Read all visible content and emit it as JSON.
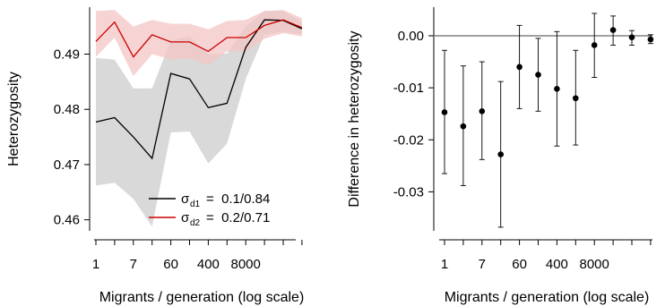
{
  "chart_data": [
    {
      "type": "line",
      "xlabel": "Migrants / generation (log scale)",
      "ylabel": "Heterozygosity",
      "x_ticks": [
        "1",
        "7",
        "60",
        "400",
        "8000"
      ],
      "y_ticks": [
        "0.46",
        "0.47",
        "0.48",
        "0.49"
      ],
      "ylim": [
        0.458,
        0.4985
      ],
      "x": [
        1,
        2,
        3,
        4,
        5,
        6,
        7,
        8,
        9,
        10,
        11,
        12
      ],
      "series": [
        {
          "name": "σd1 = 0.1/0.84",
          "legend_symbol": "σ",
          "legend_sub": "d1",
          "legend_value": "=  0.1/0.84",
          "color": "#000000",
          "band_color": "#d9d9d9",
          "values": [
            0.4777,
            0.4785,
            0.475,
            0.4711,
            0.4865,
            0.4855,
            0.4803,
            0.4811,
            0.4912,
            0.4962,
            0.4961,
            0.4946
          ],
          "lower": [
            0.4662,
            0.4667,
            0.4638,
            0.4588,
            0.4758,
            0.476,
            0.4702,
            0.4738,
            0.4855,
            0.4935,
            0.4941,
            0.4936
          ],
          "upper": [
            0.4893,
            0.489,
            0.4838,
            0.4838,
            0.4925,
            0.4932,
            0.49,
            0.4901,
            0.495,
            0.4978,
            0.4978,
            0.4958
          ]
        },
        {
          "name": "σd2 = 0.2/0.71",
          "legend_symbol": "σ",
          "legend_sub": "d2",
          "legend_value": "=  0.2/0.71",
          "color": "#cc0000",
          "band_color": "#f4c6c6",
          "values": [
            0.4923,
            0.4958,
            0.4895,
            0.4935,
            0.4922,
            0.4922,
            0.4905,
            0.493,
            0.493,
            0.4952,
            0.4962,
            0.4948
          ],
          "lower": [
            0.4895,
            0.493,
            0.486,
            0.49,
            0.489,
            0.4892,
            0.488,
            0.4905,
            0.4905,
            0.4928,
            0.4938,
            0.4932
          ],
          "upper": [
            0.4978,
            0.498,
            0.495,
            0.4962,
            0.4955,
            0.4955,
            0.4945,
            0.496,
            0.4962,
            0.4978,
            0.498,
            0.4965
          ]
        }
      ]
    },
    {
      "type": "scatter",
      "xlabel": "Migrants / generation (log scale)",
      "ylabel": "Difference in heterozygosity",
      "x_ticks": [
        "1",
        "7",
        "60",
        "400",
        "8000"
      ],
      "y_ticks": [
        "0.00",
        "-0.01",
        "-0.02",
        "-0.03"
      ],
      "ylim": [
        -0.0375,
        0.0055
      ],
      "reference_line": 0,
      "x": [
        1,
        2,
        3,
        4,
        5,
        6,
        7,
        8,
        9,
        10,
        11,
        12
      ],
      "values": [
        -0.0147,
        -0.0174,
        -0.0145,
        -0.0228,
        -0.006,
        -0.0075,
        -0.0102,
        -0.012,
        -0.0018,
        0.0011,
        -0.0003,
        -0.0007
      ],
      "err_low": [
        -0.0265,
        -0.0288,
        -0.0238,
        -0.0368,
        -0.014,
        -0.0145,
        -0.0212,
        -0.021,
        -0.008,
        -0.0018,
        -0.0018,
        -0.0015
      ],
      "err_high": [
        -0.0028,
        -0.0058,
        -0.005,
        -0.0088,
        0.002,
        -0.0005,
        0.0008,
        -0.0028,
        0.0043,
        0.0038,
        0.001,
        0.0002
      ]
    }
  ]
}
